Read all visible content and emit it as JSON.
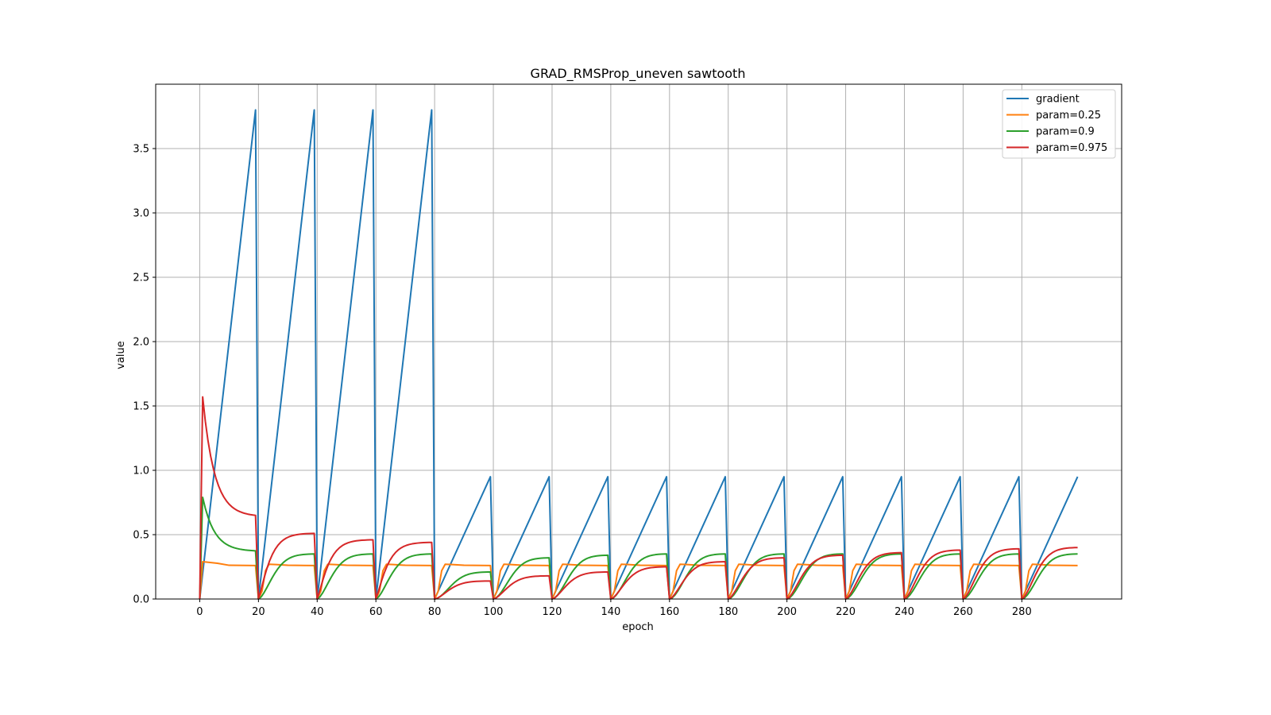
{
  "chart_data": {
    "type": "line",
    "title": "GRAD_RMSProp_uneven sawtooth",
    "xlabel": "epoch",
    "ylabel": "value",
    "xlim": [
      -15,
      314
    ],
    "ylim": [
      0,
      4.0
    ],
    "x_ticks": [
      0,
      20,
      40,
      60,
      80,
      100,
      120,
      140,
      160,
      180,
      200,
      220,
      240,
      260,
      280
    ],
    "y_ticks": [
      0.0,
      0.5,
      1.0,
      1.5,
      2.0,
      2.5,
      3.0,
      3.5
    ],
    "grid": true,
    "legend_position": "top-right",
    "period": 20,
    "series": [
      {
        "name": "gradient",
        "color": "#1f77b4",
        "peaks": [
          3.8,
          3.8,
          3.8,
          3.8,
          0.95,
          0.95,
          0.95,
          0.95,
          0.95,
          0.95,
          0.95,
          0.95,
          0.95,
          0.95,
          0.95
        ],
        "segment_start_values": [
          0,
          0,
          0,
          0,
          0,
          0,
          0,
          0,
          0,
          0,
          0,
          0,
          0,
          0,
          0
        ],
        "x_range": [
          0,
          299
        ]
      },
      {
        "name": "param=0.25",
        "color": "#ff7f0e",
        "segment_start_values": [
          0,
          0,
          0,
          0,
          0,
          0,
          0,
          0,
          0,
          0,
          0,
          0,
          0,
          0,
          0
        ],
        "segment_peak_values": [
          0.29,
          0.27,
          0.27,
          0.27,
          0.27,
          0.27,
          0.27,
          0.27,
          0.27,
          0.27,
          0.27,
          0.27,
          0.27,
          0.27,
          0.27
        ],
        "segment_end_values": [
          0.26,
          0.26,
          0.26,
          0.26,
          0.26,
          0.26,
          0.26,
          0.26,
          0.26,
          0.26,
          0.26,
          0.26,
          0.26,
          0.26,
          0.26
        ]
      },
      {
        "name": "param=0.9",
        "color": "#2ca02c",
        "segment_start_values": [
          0,
          0,
          0,
          0,
          0,
          0,
          0,
          0,
          0,
          0,
          0,
          0,
          0,
          0,
          0
        ],
        "segment_peak_values": [
          0.79,
          0.35,
          0.35,
          0.35,
          0.21,
          0.32,
          0.34,
          0.35,
          0.35,
          0.35,
          0.35,
          0.35,
          0.35,
          0.35,
          0.35
        ],
        "segment_end_values": [
          0.37,
          0.35,
          0.35,
          0.35,
          0.21,
          0.32,
          0.34,
          0.35,
          0.35,
          0.35,
          0.35,
          0.35,
          0.35,
          0.35,
          0.35
        ]
      },
      {
        "name": "param=0.975",
        "color": "#d62728",
        "segment_start_values": [
          0,
          0,
          0,
          0,
          0,
          0,
          0,
          0,
          0,
          0,
          0,
          0,
          0,
          0,
          0
        ],
        "segment_peak_values": [
          1.57,
          0.51,
          0.46,
          0.44,
          0.14,
          0.18,
          0.21,
          0.25,
          0.29,
          0.32,
          0.34,
          0.36,
          0.38,
          0.39,
          0.4
        ],
        "segment_end_values": [
          0.64,
          0.51,
          0.46,
          0.44,
          0.14,
          0.18,
          0.21,
          0.25,
          0.29,
          0.32,
          0.34,
          0.36,
          0.38,
          0.39,
          0.4
        ]
      }
    ]
  }
}
